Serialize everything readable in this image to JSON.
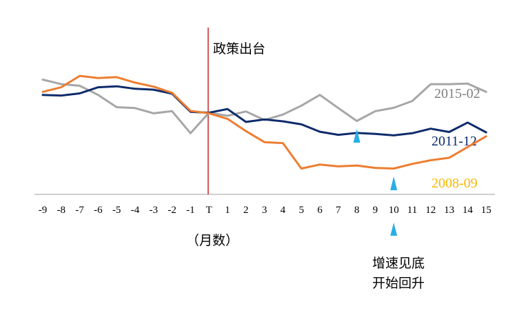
{
  "chart_data": {
    "type": "line",
    "x": [
      "-9",
      "-8",
      "-7",
      "-6",
      "-5",
      "-4",
      "-3",
      "-2",
      "-1",
      "T",
      "1",
      "2",
      "3",
      "4",
      "5",
      "6",
      "7",
      "8",
      "9",
      "10",
      "11",
      "12",
      "13",
      "14",
      "15"
    ],
    "xlabel": "（月数）",
    "marker_label": "政策出台",
    "note_lines": [
      "增速见底",
      "开始回升"
    ],
    "arrow_x": [
      "8",
      "10"
    ],
    "grid": false,
    "colors": {
      "2015-02": "#a6a6a6",
      "2011-12": "#0d2b6b",
      "2008-09": "#ed7d31",
      "marker": "#c00000",
      "arrow": "#29aee3",
      "axis": "#bfbfbf"
    },
    "series": [
      {
        "name": "2015-02",
        "label_color": "#7f7f7f",
        "values": [
          1.9,
          1.75,
          1.7,
          1.4,
          1.0,
          0.97,
          0.8,
          0.87,
          0.15,
          0.82,
          0.72,
          0.86,
          0.58,
          0.76,
          1.05,
          1.4,
          0.97,
          0.55,
          0.87,
          0.98,
          1.2,
          1.75,
          1.75,
          1.77,
          1.5
        ]
      },
      {
        "name": "2011-12",
        "label_color": "#0d2b6b",
        "values": [
          1.4,
          1.38,
          1.45,
          1.65,
          1.68,
          1.6,
          1.57,
          1.44,
          0.85,
          0.82,
          0.94,
          0.52,
          0.6,
          0.54,
          0.44,
          0.2,
          0.1,
          0.16,
          0.13,
          0.08,
          0.15,
          0.3,
          0.19,
          0.5,
          0.18
        ]
      },
      {
        "name": "2008-09",
        "label_color": "#f5b800",
        "values": [
          1.5,
          1.65,
          2.02,
          1.95,
          1.98,
          1.8,
          1.67,
          1.47,
          0.88,
          0.8,
          0.62,
          0.22,
          -0.14,
          -0.17,
          -1.0,
          -0.87,
          -0.93,
          -0.9,
          -0.98,
          -1.0,
          -0.85,
          -0.73,
          -0.65,
          -0.3,
          0.05
        ]
      }
    ]
  }
}
